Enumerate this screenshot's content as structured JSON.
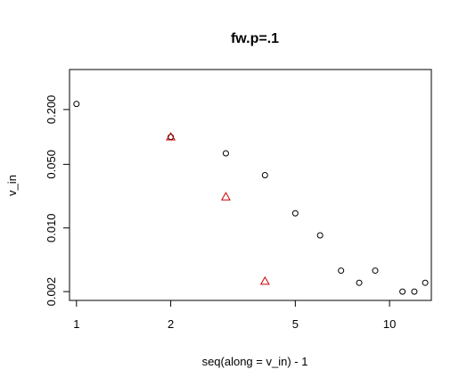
{
  "chart_data": {
    "type": "scatter",
    "title": "fw.p=.1",
    "xlabel": "seq(along = v_in) - 1",
    "ylabel": "v_in",
    "x_scale": "log",
    "y_scale": "log",
    "xlim": [
      0.95,
      13.6
    ],
    "ylim": [
      0.0016,
      0.55
    ],
    "x_ticks": [
      {
        "value": 1,
        "label": "1"
      },
      {
        "value": 2,
        "label": "2"
      },
      {
        "value": 5,
        "label": "5"
      },
      {
        "value": 10,
        "label": "10"
      }
    ],
    "y_ticks": [
      {
        "value": 0.002,
        "label": "0.002"
      },
      {
        "value": 0.01,
        "label": "0.010"
      },
      {
        "value": 0.05,
        "label": "0.050"
      },
      {
        "value": 0.2,
        "label": "0.200"
      }
    ],
    "grid": false,
    "legend": "none",
    "series": [
      {
        "marker": "circle",
        "color": "#000000",
        "x": [
          1,
          2,
          3,
          4,
          5,
          6,
          7,
          8,
          9,
          11,
          12,
          13
        ],
        "y": [
          0.23,
          0.1,
          0.066,
          0.038,
          0.0145,
          0.0083,
          0.0034,
          0.0025,
          0.0034,
          0.002,
          0.002,
          0.0025
        ]
      },
      {
        "marker": "triangle",
        "color": "#cc0000",
        "x": [
          2,
          3,
          4
        ],
        "y": [
          0.1,
          0.022,
          0.0026
        ]
      }
    ]
  }
}
